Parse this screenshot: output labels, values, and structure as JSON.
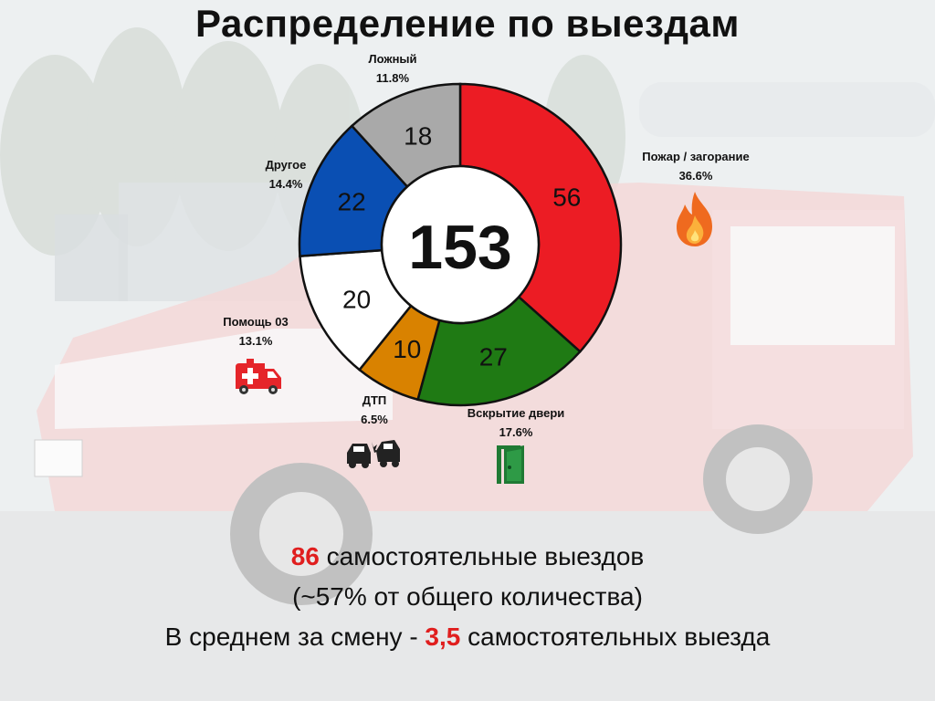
{
  "title": "Распределение по выездам",
  "chart_data": {
    "type": "donut",
    "center_value": "153",
    "slices": [
      {
        "name": "Пожар / загорание",
        "value": 56,
        "percent": "36.6%",
        "color": "#ec1c24",
        "value_color": "#111111"
      },
      {
        "name": "Вскрытие двери",
        "value": 27,
        "percent": "17.6%",
        "color": "#1f7a14",
        "value_color": "#111111"
      },
      {
        "name": "ДТП",
        "value": 10,
        "percent": "6.5%",
        "color": "#d98200",
        "value_color": "#111111"
      },
      {
        "name": "Помощь 03",
        "value": 20,
        "percent": "13.1%",
        "color": "#ffffff",
        "value_color": "#111111"
      },
      {
        "name": "Другое",
        "value": 22,
        "percent": "14.4%",
        "color": "#0a4fb3",
        "value_color": "#111111"
      },
      {
        "name": "Ложный",
        "value": 18,
        "percent": "11.8%",
        "color": "#a9a9a9",
        "value_color": "#111111"
      }
    ]
  },
  "icons": {
    "fire": "fire-icon",
    "door": "door-icon",
    "crash": "car-crash-icon",
    "ambulance": "ambulance-icon"
  },
  "footer": {
    "line1_number": "86",
    "line1_text": " самостоятельные выездов",
    "line2": "(~57% от общего количества)",
    "line3_prefix": "В среднем за смену - ",
    "line3_number": "3,5",
    "line3_suffix": " самостоятельных выезда"
  },
  "colors": {
    "accent_red": "#e01e1e"
  }
}
